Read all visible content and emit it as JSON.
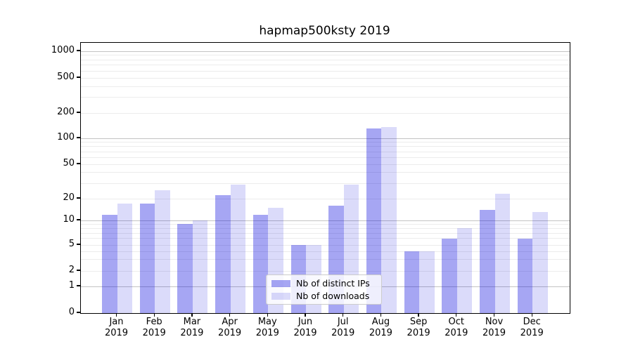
{
  "title": "hapmap500ksty 2019",
  "chart_data": {
    "type": "bar",
    "title": "hapmap500ksty 2019",
    "categories": [
      "Jan",
      "Feb",
      "Mar",
      "Apr",
      "May",
      "Jun",
      "Jul",
      "Aug",
      "Sep",
      "Oct",
      "Nov",
      "Dec"
    ],
    "category_year": "2019",
    "series": [
      {
        "name": "Nb of distinct IPs",
        "color": "rgba(0,0,221,0.35)",
        "values": [
          12,
          17,
          9,
          22,
          12,
          5,
          16,
          130,
          4,
          6,
          14,
          6
        ]
      },
      {
        "name": "Nb of downloads",
        "color": "rgba(0,0,221,0.14)",
        "values": [
          17,
          25,
          10,
          29,
          15,
          5,
          29,
          135,
          4,
          8,
          23,
          13
        ]
      }
    ],
    "xlabel": "",
    "ylabel": "",
    "y_axis_scale": "log-like (custom), ticks 0,1,2,5,10,20,50,100,200,500,1000",
    "y_ticks": [
      0,
      1,
      2,
      5,
      10,
      20,
      50,
      100,
      200,
      500,
      1000
    ],
    "y_gridlines_major": [
      1,
      10,
      100,
      1000
    ],
    "y_gridlines_minor": [
      2,
      3,
      4,
      5,
      6,
      7,
      8,
      9,
      20,
      30,
      40,
      50,
      60,
      70,
      80,
      90,
      200,
      300,
      400,
      500,
      600,
      700,
      800,
      900
    ],
    "ylim": [
      0,
      1300
    ],
    "grid": "horizontal",
    "legend_position": "lower center inside plot"
  },
  "colors": {
    "bar_distinct_ips": "rgba(0,0,221,0.35)",
    "bar_downloads": "rgba(0,0,221,0.14)",
    "grid_major": "#c3c3c3",
    "grid_minor": "#ececec",
    "axis": "#000000",
    "background": "#ffffff",
    "legend_border": "#cccccc"
  }
}
